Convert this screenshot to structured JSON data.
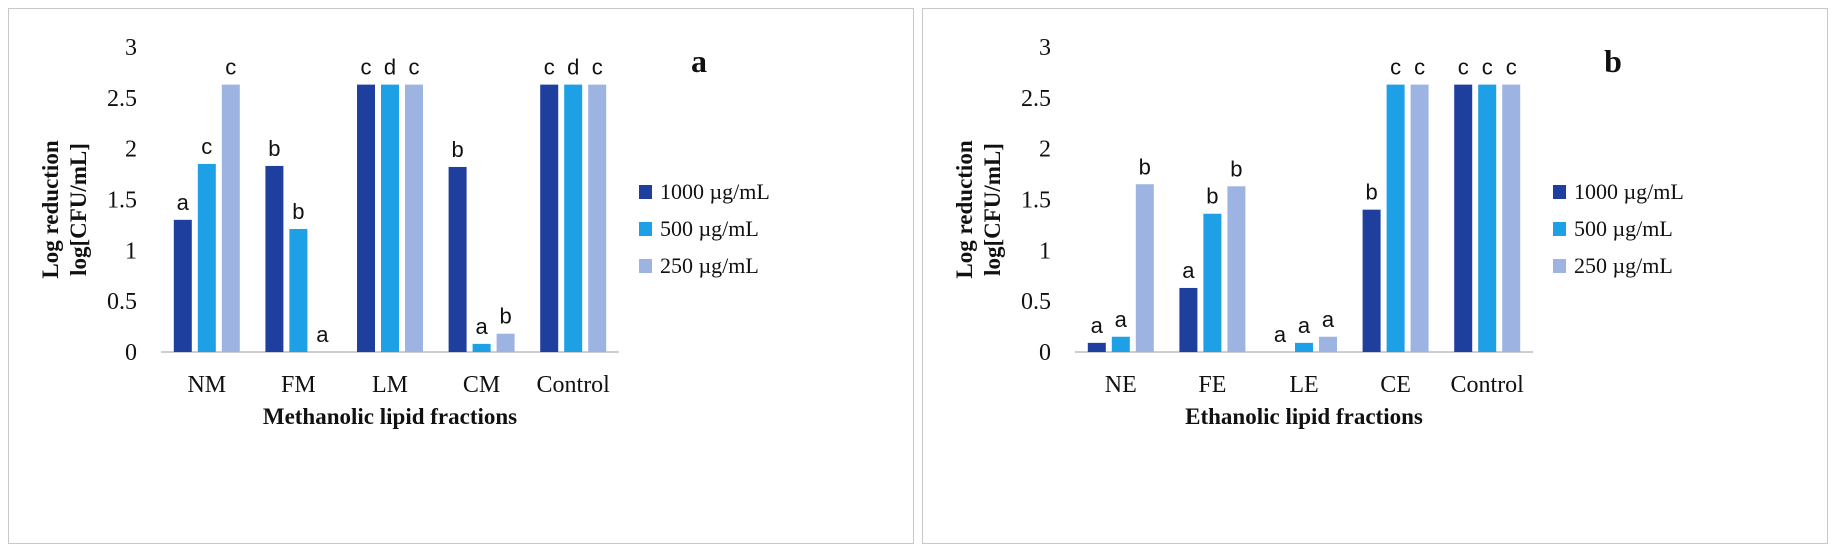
{
  "chart_data": [
    {
      "type": "bar",
      "panel_label": "a",
      "title": "",
      "xlabel": "Methanolic lipid fractions",
      "ylabel_line1": "Log reduction",
      "ylabel_line2": "log[CFU/mL]",
      "ylim": [
        0,
        3
      ],
      "yticks": [
        "0",
        "0.5",
        "1",
        "1.5",
        "2",
        "2.5",
        "3"
      ],
      "ytick_values": [
        0,
        0.5,
        1,
        1.5,
        2,
        2.5,
        3
      ],
      "grid": false,
      "legend_position": "right",
      "categories": [
        "NM",
        "FM",
        "LM",
        "CM",
        "Control"
      ],
      "series": [
        {
          "name": "1000 µg/mL",
          "color": "#1f3f9f",
          "values": [
            1.3,
            1.83,
            2.63,
            1.82,
            2.63
          ],
          "labels": [
            "a",
            "b",
            "c",
            "b",
            "c"
          ]
        },
        {
          "name": "500 µg/mL",
          "color": "#1ea0e6",
          "values": [
            1.85,
            1.21,
            2.63,
            0.08,
            2.63
          ],
          "labels": [
            "c",
            "b",
            "d",
            "a",
            "d"
          ]
        },
        {
          "name": "250 µg/mL",
          "color": "#9db4e2",
          "values": [
            2.63,
            0.0,
            2.63,
            0.18,
            2.63
          ],
          "labels": [
            "c",
            "a",
            "c",
            "b",
            "c"
          ]
        }
      ]
    },
    {
      "type": "bar",
      "panel_label": "b",
      "title": "",
      "xlabel": "Ethanolic lipid fractions",
      "ylabel_line1": "Log reduction",
      "ylabel_line2": "log[CFU/mL]",
      "ylim": [
        0,
        3
      ],
      "yticks": [
        "0",
        "0.5",
        "1",
        "1.5",
        "2",
        "2.5",
        "3"
      ],
      "ytick_values": [
        0,
        0.5,
        1,
        1.5,
        2,
        2.5,
        3
      ],
      "grid": false,
      "legend_position": "right",
      "categories": [
        "NE",
        "FE",
        "LE",
        "CE",
        "Control"
      ],
      "series": [
        {
          "name": "1000 µg/mL",
          "color": "#1f3f9f",
          "values": [
            0.09,
            0.63,
            0.0,
            1.4,
            2.63
          ],
          "labels": [
            "a",
            "a",
            "a",
            "b",
            "c"
          ]
        },
        {
          "name": "500 µg/mL",
          "color": "#1ea0e6",
          "values": [
            0.15,
            1.36,
            0.09,
            2.63,
            2.63
          ],
          "labels": [
            "a",
            "b",
            "a",
            "c",
            "c"
          ]
        },
        {
          "name": "250 µg/mL",
          "color": "#9db4e2",
          "values": [
            1.65,
            1.63,
            0.15,
            2.63,
            2.63
          ],
          "labels": [
            "b",
            "b",
            "a",
            "c",
            "c"
          ]
        }
      ]
    }
  ]
}
